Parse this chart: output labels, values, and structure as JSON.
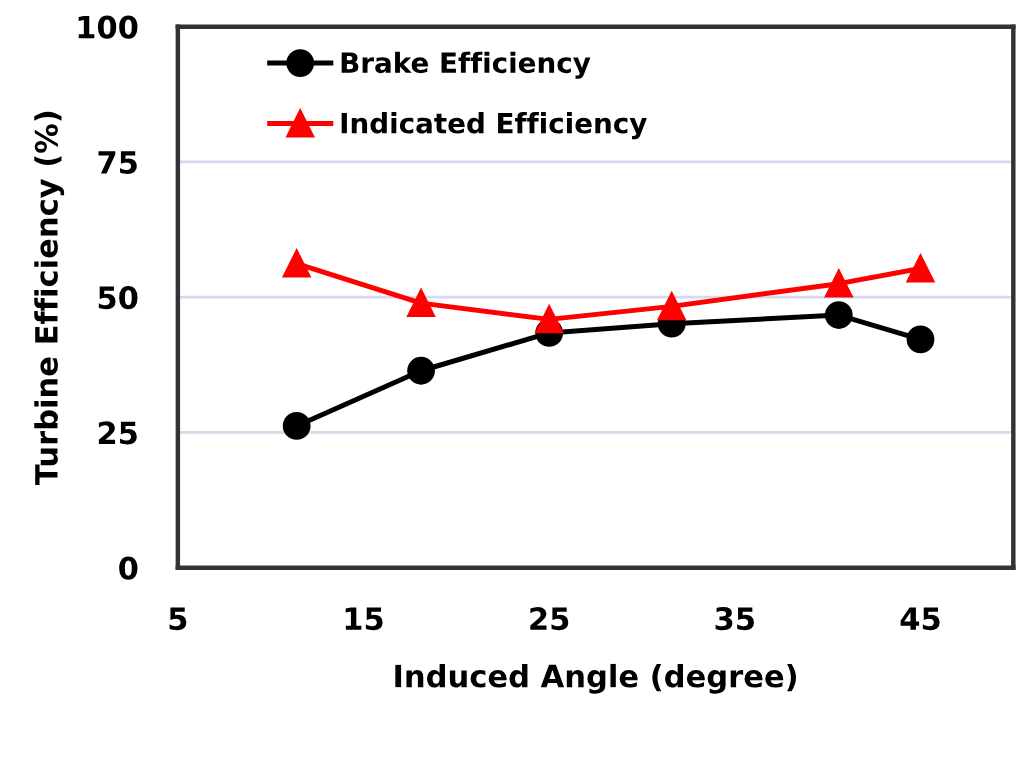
{
  "chart_data": {
    "type": "line",
    "xlabel": "Induced Angle (degree)",
    "ylabel": "Turbine Efficiency (%)",
    "xlim": [
      5,
      50
    ],
    "xticks": [
      5,
      15,
      25,
      35,
      45
    ],
    "ylim": [
      0,
      100
    ],
    "yticks": [
      0,
      25,
      50,
      75,
      100
    ],
    "grid": "y",
    "legend": "top left",
    "line_style": "solid",
    "x": [
      11.4,
      18.1,
      25,
      31.6,
      40.6,
      45
    ],
    "series": [
      {
        "name": "Brake Efficiency",
        "color": "#000000",
        "marker": "circle",
        "values": [
          26.2,
          36.4,
          43.4,
          45.1,
          46.7,
          42.2
        ]
      },
      {
        "name": "Indicated Efficiency",
        "color": "#ff0000",
        "marker": "triangle",
        "values": [
          56.2,
          48.9,
          45.9,
          48.3,
          52.5,
          55.3
        ]
      }
    ]
  }
}
